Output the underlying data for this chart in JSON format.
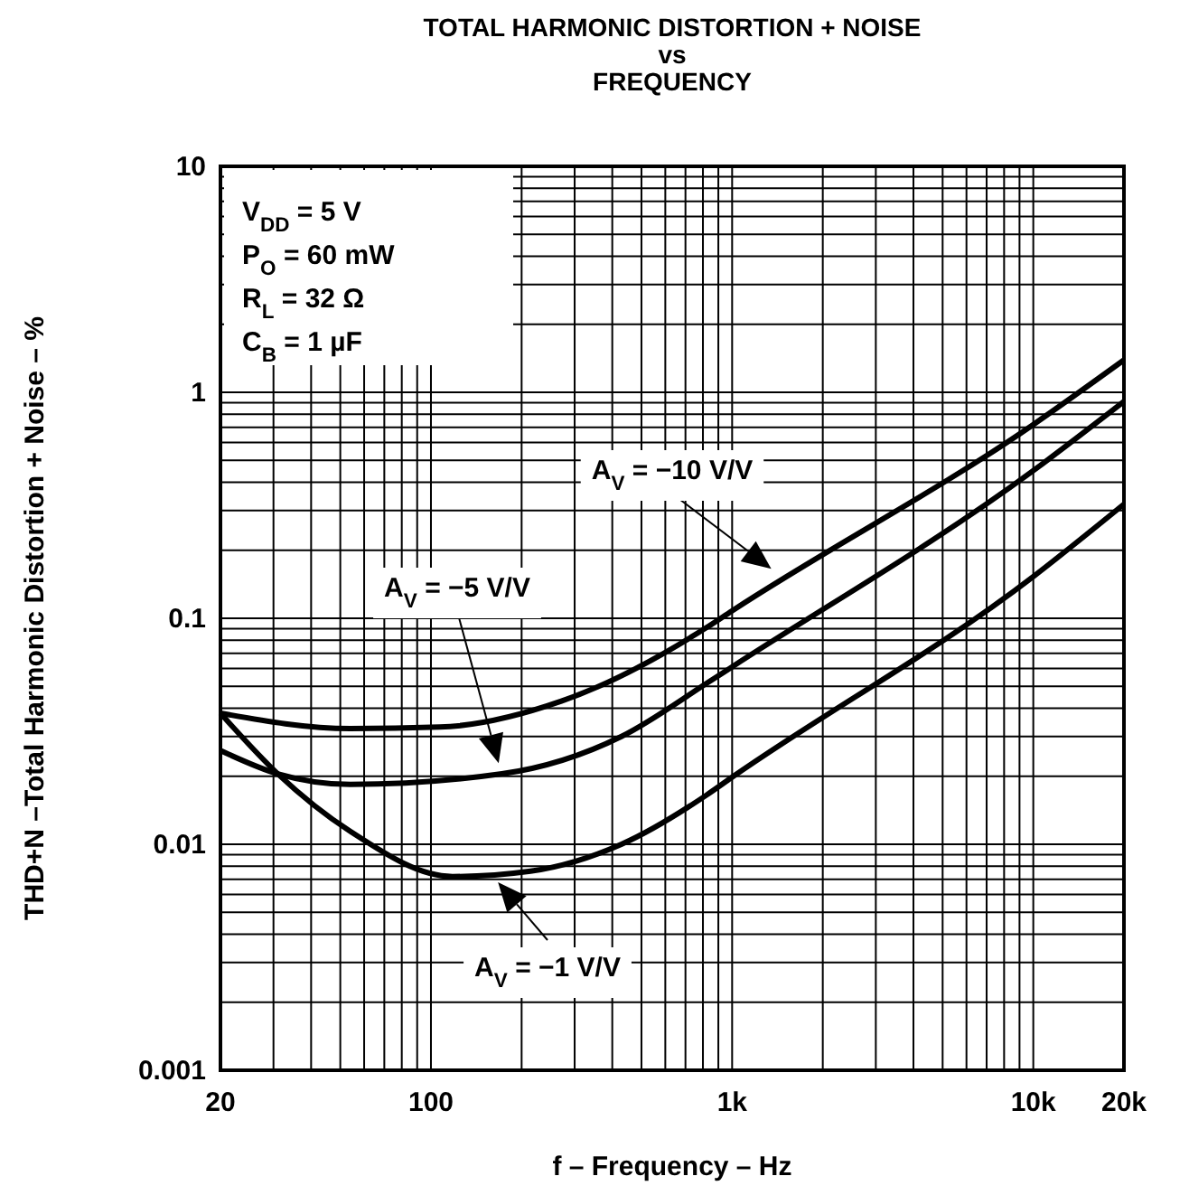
{
  "chart_data": {
    "type": "line",
    "title": "TOTAL HARMONIC DISTORTION + NOISE\nvs\nFREQUENCY",
    "xlabel": "f – Frequency – Hz",
    "ylabel": "THD+N –Total Harmonic Distortion + Noise – %",
    "log": "xy",
    "grid": true,
    "marker": "none",
    "line_style": "solid",
    "xlim": [
      20,
      20000
    ],
    "ylim": [
      0.001,
      10
    ],
    "xticks": [
      20,
      {
        "value": 30,
        "label": null
      },
      {
        "value": 40,
        "label": null
      },
      {
        "value": 50,
        "label": null
      },
      {
        "value": 60,
        "label": null
      },
      {
        "value": 70,
        "label": null
      },
      {
        "value": 80,
        "label": null
      },
      {
        "value": 90,
        "label": null
      },
      100,
      {
        "value": 200,
        "label": null
      },
      {
        "value": 300,
        "label": null
      },
      {
        "value": 400,
        "label": null
      },
      {
        "value": 500,
        "label": null
      },
      {
        "value": 600,
        "label": null
      },
      {
        "value": 700,
        "label": null
      },
      {
        "value": 800,
        "label": null
      },
      {
        "value": 900,
        "label": null
      },
      {
        "value": 1000,
        "label": "1k"
      },
      {
        "value": 2000,
        "label": null
      },
      {
        "value": 3000,
        "label": null
      },
      {
        "value": 4000,
        "label": null
      },
      {
        "value": 5000,
        "label": null
      },
      {
        "value": 6000,
        "label": null
      },
      {
        "value": 7000,
        "label": null
      },
      {
        "value": 8000,
        "label": null
      },
      {
        "value": 9000,
        "label": null
      },
      {
        "value": 10000,
        "label": "10k"
      },
      {
        "value": 20000,
        "label": "20k"
      }
    ],
    "yticks": [
      0.001,
      {
        "value": 0.002,
        "label": null
      },
      {
        "value": 0.003,
        "label": null
      },
      {
        "value": 0.004,
        "label": null
      },
      {
        "value": 0.005,
        "label": null
      },
      {
        "value": 0.006,
        "label": null
      },
      {
        "value": 0.007,
        "label": null
      },
      {
        "value": 0.008,
        "label": null
      },
      {
        "value": 0.009,
        "label": null
      },
      0.01,
      {
        "value": 0.02,
        "label": null
      },
      {
        "value": 0.03,
        "label": null
      },
      {
        "value": 0.04,
        "label": null
      },
      {
        "value": 0.05,
        "label": null
      },
      {
        "value": 0.06,
        "label": null
      },
      {
        "value": 0.07,
        "label": null
      },
      {
        "value": 0.08,
        "label": null
      },
      {
        "value": 0.09,
        "label": null
      },
      0.1,
      {
        "value": 0.2,
        "label": null
      },
      {
        "value": 0.3,
        "label": null
      },
      {
        "value": 0.4,
        "label": null
      },
      {
        "value": 0.5,
        "label": null
      },
      {
        "value": 0.6,
        "label": null
      },
      {
        "value": 0.7,
        "label": null
      },
      {
        "value": 0.8,
        "label": null
      },
      {
        "value": 0.9,
        "label": null
      },
      1,
      {
        "value": 2,
        "label": null
      },
      {
        "value": 3,
        "label": null
      },
      {
        "value": 4,
        "label": null
      },
      {
        "value": 5,
        "label": null
      },
      {
        "value": 6,
        "label": null
      },
      {
        "value": 7,
        "label": null
      },
      {
        "value": 8,
        "label": null
      },
      {
        "value": 9,
        "label": null
      },
      10
    ],
    "series": [
      {
        "color": "#000000",
        "x": [
          20,
          54,
          107,
          271,
          822,
          1000,
          10000,
          20000
        ],
        "values": [
          0.038,
          0.0325,
          0.033,
          0.043,
          0.091,
          0.108,
          0.72,
          1.39
        ]
      },
      {
        "color": "#000000",
        "x": [
          20,
          31,
          54,
          172,
          429,
          822,
          1000,
          10000,
          20000
        ],
        "values": [
          0.026,
          0.0205,
          0.0184,
          0.0205,
          0.03,
          0.0515,
          0.061,
          0.45,
          0.91
        ]
      },
      {
        "color": "#000000",
        "x": [
          20,
          31,
          54,
          118,
          214,
          429,
          822,
          1000,
          10000,
          20000
        ],
        "values": [
          0.038,
          0.0205,
          0.0114,
          0.0072,
          0.0076,
          0.01,
          0.0165,
          0.0198,
          0.153,
          0.32
        ]
      }
    ],
    "annotations": [
      "V$_{DD}$ = 5 V",
      "P$_{O}$ = 60 mW",
      "R$_{L}$ = 32 Ω",
      "C$_{B}$ = 1 µF",
      "A$_{V}$ = −10 V/V",
      "A$_{V}$ = −5 V/V",
      "A$_{V}$ = −1 V/V"
    ]
  }
}
